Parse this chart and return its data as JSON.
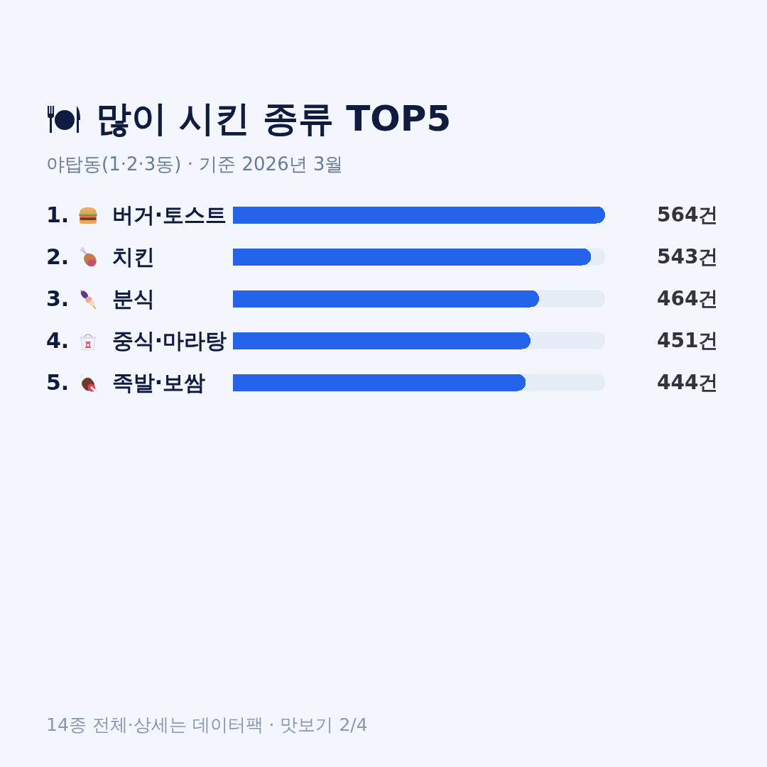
{
  "chart_data": {
    "type": "bar",
    "orientation": "horizontal",
    "title": "많이 시킨 종류 TOP5",
    "subtitle": "야탑동(1·2·3동) · 기준 2026년 3월",
    "categories": [
      "1. 버거·토스트",
      "2. 치킨",
      "3. 분식",
      "4. 중식·마라탕",
      "5. 족발·보쌈"
    ],
    "values": [
      564,
      543,
      464,
      451,
      444
    ],
    "color": "#2563eb",
    "value_labels": [
      "564건",
      "543건",
      "464건",
      "451건",
      "444건"
    ],
    "xlim": [
      0,
      564
    ],
    "tick_labels": "y",
    "annotations": [
      "14종 전체·상세는 데이터팩 · 맛보기 2/4"
    ]
  }
}
